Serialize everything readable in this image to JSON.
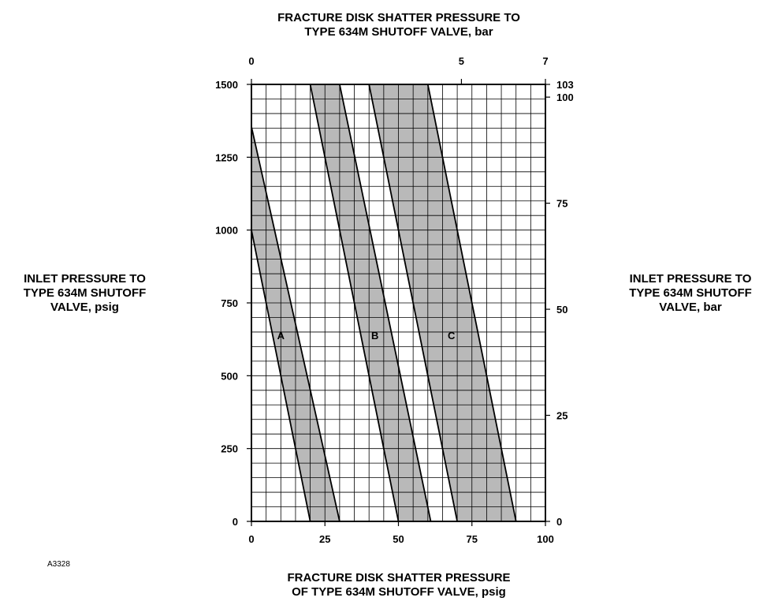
{
  "chart_data": {
    "type": "area",
    "top_axis_title": [
      "FRACTURE DISK SHATTER PRESSURE TO",
      "TYPE 634M SHUTOFF VALVE, bar"
    ],
    "bottom_axis_title": [
      "FRACTURE DISK SHATTER PRESSURE",
      "OF TYPE 634M SHUTOFF VALVE, psig"
    ],
    "left_axis_title": [
      "INLET PRESSURE TO",
      "TYPE 634M SHUTOFF",
      "VALVE, psig"
    ],
    "right_axis_title": [
      "INLET PRESSURE TO",
      "TYPE 634M SHUTOFF",
      "VALVE, bar"
    ],
    "figure_id": "A3328",
    "xlim": [
      0,
      100
    ],
    "ylim": [
      0,
      1500
    ],
    "grid": true,
    "grid_x_step": 5,
    "grid_y_step": 50,
    "x_ticks": [
      0,
      25,
      50,
      75,
      100
    ],
    "x_tick_labels": [
      "0",
      "25",
      "50",
      "75",
      "100"
    ],
    "y_ticks": [
      0,
      250,
      500,
      750,
      1000,
      1250,
      1500
    ],
    "y_tick_labels": [
      "0",
      "250",
      "500",
      "750",
      "1000",
      "1250",
      "1500"
    ],
    "top_ticks_bar": [
      0,
      5,
      7
    ],
    "top_tick_labels": [
      "0",
      "5",
      "7"
    ],
    "right_ticks_bar": [
      0,
      25,
      50,
      75,
      100,
      103
    ],
    "right_tick_labels": [
      "0",
      "25",
      "50",
      "75",
      "100",
      "103"
    ],
    "bands": [
      {
        "label": "A",
        "label_at": [
          10,
          625
        ],
        "polygon": [
          [
            0,
            1000
          ],
          [
            0,
            1355
          ],
          [
            30,
            0
          ],
          [
            20,
            0
          ]
        ]
      },
      {
        "label": "B",
        "label_at": [
          42,
          625
        ],
        "polygon": [
          [
            20,
            1500
          ],
          [
            30,
            1500
          ],
          [
            61,
            0
          ],
          [
            50,
            0
          ]
        ]
      },
      {
        "label": "C",
        "label_at": [
          68,
          625
        ],
        "polygon": [
          [
            40,
            1500
          ],
          [
            60,
            1500
          ],
          [
            90,
            0
          ],
          [
            70,
            0
          ]
        ]
      }
    ],
    "band_fill": "#b9b9b9"
  }
}
